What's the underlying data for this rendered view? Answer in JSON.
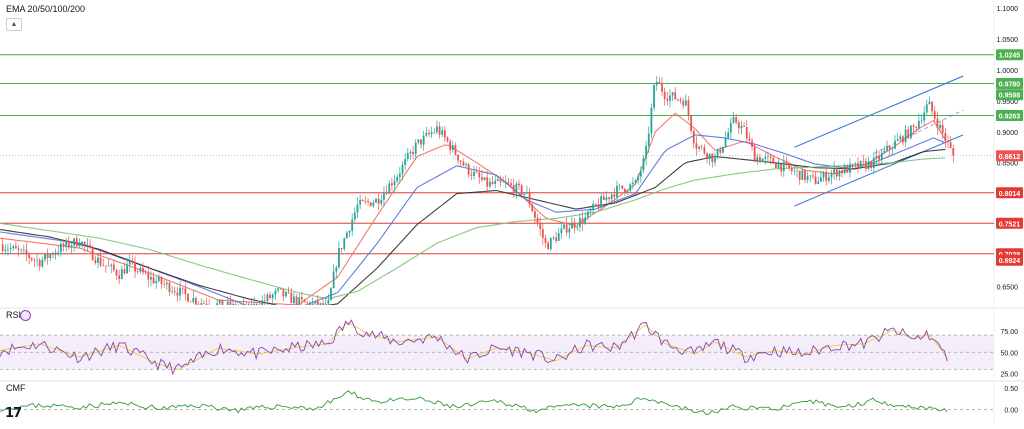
{
  "indicator_label": "EMA 20/50/100/200",
  "rsi_label": "RSI",
  "cmf_label": "CMF",
  "logo_text": "17",
  "colors": {
    "candle_up": "#26a69a",
    "candle_down": "#ef5350",
    "ema20": "#ef6c5d",
    "ema50": "#4f6fe0",
    "ema100": "#2b2b2b",
    "ema200": "#7cc477",
    "resistance_green": "#4caf50",
    "support_red": "#e53935",
    "channel": "#3f7fd9",
    "rsi_line": "#8e44ad",
    "rsi_ma": "#e8d13a",
    "cmf_line": "#2e9b3a"
  },
  "chart_data": [
    {
      "type": "candlestick",
      "title": "EMA 20/50/100/200",
      "ylim": [
        0.62,
        1.1
      ],
      "y_ticks": [
        "1.1000",
        "1.0500",
        "1.0000",
        "0.9500",
        "0.9000",
        "0.8500",
        "0.6500"
      ],
      "current_price": "0.8612",
      "horizontal_levels": [
        {
          "value": 1.0245,
          "label": "1.0245",
          "color": "green"
        },
        {
          "value": 0.978,
          "label": "0.9780",
          "color": "green"
        },
        {
          "value": 0.9263,
          "label": "0.9263",
          "color": "green"
        },
        {
          "value": 0.8014,
          "label": "0.8014",
          "color": "red"
        },
        {
          "value": 0.7521,
          "label": "0.7521",
          "color": "red"
        },
        {
          "value": 0.7028,
          "label": "0.7028",
          "color": "red"
        }
      ],
      "extra_price_labels": [
        {
          "value": 0.9598,
          "label": "0.9598",
          "color": "green"
        },
        {
          "value": 0.6924,
          "label": "0.6924",
          "color": "red"
        }
      ],
      "channel": {
        "upper": [
          [
            0.8,
            0.875
          ],
          [
            0.97,
            0.99
          ]
        ],
        "lower": [
          [
            0.8,
            0.78
          ],
          [
            0.97,
            0.895
          ]
        ],
        "mid": [
          [
            0.88,
            0.865
          ],
          [
            0.97,
            0.935
          ]
        ]
      },
      "keypoints": [
        [
          0.0,
          0.718
        ],
        [
          0.02,
          0.705
        ],
        [
          0.04,
          0.69
        ],
        [
          0.06,
          0.712
        ],
        [
          0.08,
          0.724
        ],
        [
          0.1,
          0.69
        ],
        [
          0.12,
          0.67
        ],
        [
          0.13,
          0.685
        ],
        [
          0.15,
          0.664
        ],
        [
          0.17,
          0.65
        ],
        [
          0.2,
          0.625
        ],
        [
          0.25,
          0.612
        ],
        [
          0.28,
          0.64
        ],
        [
          0.3,
          0.625
        ],
        [
          0.33,
          0.615
        ],
        [
          0.34,
          0.7
        ],
        [
          0.36,
          0.78
        ],
        [
          0.38,
          0.79
        ],
        [
          0.4,
          0.83
        ],
        [
          0.42,
          0.88
        ],
        [
          0.44,
          0.905
        ],
        [
          0.45,
          0.885
        ],
        [
          0.47,
          0.84
        ],
        [
          0.49,
          0.815
        ],
        [
          0.51,
          0.815
        ],
        [
          0.53,
          0.8
        ],
        [
          0.55,
          0.715
        ],
        [
          0.57,
          0.745
        ],
        [
          0.59,
          0.76
        ],
        [
          0.6,
          0.78
        ],
        [
          0.62,
          0.805
        ],
        [
          0.64,
          0.815
        ],
        [
          0.65,
          0.86
        ],
        [
          0.66,
          0.985
        ],
        [
          0.67,
          0.96
        ],
        [
          0.69,
          0.95
        ],
        [
          0.7,
          0.88
        ],
        [
          0.72,
          0.855
        ],
        [
          0.74,
          0.92
        ],
        [
          0.75,
          0.9
        ],
        [
          0.76,
          0.86
        ],
        [
          0.78,
          0.85
        ],
        [
          0.8,
          0.835
        ],
        [
          0.82,
          0.82
        ],
        [
          0.84,
          0.835
        ],
        [
          0.86,
          0.842
        ],
        [
          0.88,
          0.85
        ],
        [
          0.9,
          0.88
        ],
        [
          0.92,
          0.905
        ],
        [
          0.935,
          0.945
        ],
        [
          0.95,
          0.895
        ],
        [
          0.96,
          0.861
        ]
      ],
      "ema_series": [
        {
          "key": "ema20",
          "points": [
            [
              0.0,
              0.728
            ],
            [
              0.08,
              0.712
            ],
            [
              0.15,
              0.672
            ],
            [
              0.22,
              0.628
            ],
            [
              0.3,
              0.62
            ],
            [
              0.34,
              0.665
            ],
            [
              0.38,
              0.765
            ],
            [
              0.42,
              0.86
            ],
            [
              0.45,
              0.88
            ],
            [
              0.48,
              0.85
            ],
            [
              0.51,
              0.818
            ],
            [
              0.55,
              0.76
            ],
            [
              0.58,
              0.748
            ],
            [
              0.61,
              0.78
            ],
            [
              0.64,
              0.815
            ],
            [
              0.66,
              0.9
            ],
            [
              0.68,
              0.93
            ],
            [
              0.7,
              0.905
            ],
            [
              0.72,
              0.87
            ],
            [
              0.75,
              0.885
            ],
            [
              0.78,
              0.86
            ],
            [
              0.81,
              0.838
            ],
            [
              0.84,
              0.832
            ],
            [
              0.87,
              0.845
            ],
            [
              0.9,
              0.875
            ],
            [
              0.925,
              0.905
            ],
            [
              0.94,
              0.918
            ],
            [
              0.955,
              0.88
            ]
          ]
        },
        {
          "key": "ema50",
          "points": [
            [
              0.0,
              0.738
            ],
            [
              0.08,
              0.72
            ],
            [
              0.15,
              0.68
            ],
            [
              0.2,
              0.65
            ],
            [
              0.25,
              0.618
            ],
            [
              0.3,
              0.615
            ],
            [
              0.34,
              0.64
            ],
            [
              0.38,
              0.72
            ],
            [
              0.42,
              0.81
            ],
            [
              0.46,
              0.845
            ],
            [
              0.5,
              0.83
            ],
            [
              0.53,
              0.79
            ],
            [
              0.56,
              0.77
            ],
            [
              0.6,
              0.775
            ],
            [
              0.64,
              0.8
            ],
            [
              0.67,
              0.87
            ],
            [
              0.7,
              0.895
            ],
            [
              0.73,
              0.89
            ],
            [
              0.76,
              0.88
            ],
            [
              0.79,
              0.865
            ],
            [
              0.82,
              0.848
            ],
            [
              0.85,
              0.842
            ],
            [
              0.88,
              0.85
            ],
            [
              0.91,
              0.87
            ],
            [
              0.94,
              0.89
            ],
            [
              0.955,
              0.88
            ]
          ]
        },
        {
          "key": "ema100",
          "points": [
            [
              0.0,
              0.742
            ],
            [
              0.05,
              0.73
            ],
            [
              0.1,
              0.71
            ],
            [
              0.15,
              0.68
            ],
            [
              0.2,
              0.652
            ],
            [
              0.25,
              0.63
            ],
            [
              0.3,
              0.612
            ],
            [
              0.34,
              0.622
            ],
            [
              0.38,
              0.68
            ],
            [
              0.42,
              0.75
            ],
            [
              0.46,
              0.8
            ],
            [
              0.5,
              0.805
            ],
            [
              0.54,
              0.79
            ],
            [
              0.58,
              0.775
            ],
            [
              0.62,
              0.785
            ],
            [
              0.66,
              0.81
            ],
            [
              0.69,
              0.85
            ],
            [
              0.72,
              0.86
            ],
            [
              0.75,
              0.855
            ],
            [
              0.78,
              0.85
            ],
            [
              0.82,
              0.842
            ],
            [
              0.86,
              0.84
            ],
            [
              0.9,
              0.85
            ],
            [
              0.93,
              0.868
            ],
            [
              0.955,
              0.872
            ]
          ]
        },
        {
          "key": "ema200",
          "points": [
            [
              0.0,
              0.752
            ],
            [
              0.05,
              0.74
            ],
            [
              0.1,
              0.728
            ],
            [
              0.15,
              0.71
            ],
            [
              0.2,
              0.685
            ],
            [
              0.25,
              0.662
            ],
            [
              0.3,
              0.64
            ],
            [
              0.33,
              0.63
            ],
            [
              0.36,
              0.642
            ],
            [
              0.4,
              0.68
            ],
            [
              0.44,
              0.72
            ],
            [
              0.48,
              0.745
            ],
            [
              0.52,
              0.755
            ],
            [
              0.56,
              0.76
            ],
            [
              0.6,
              0.77
            ],
            [
              0.64,
              0.79
            ],
            [
              0.67,
              0.808
            ],
            [
              0.7,
              0.822
            ],
            [
              0.74,
              0.832
            ],
            [
              0.78,
              0.84
            ],
            [
              0.82,
              0.843
            ],
            [
              0.86,
              0.846
            ],
            [
              0.9,
              0.85
            ],
            [
              0.93,
              0.856
            ],
            [
              0.955,
              0.858
            ]
          ]
        }
      ]
    },
    {
      "type": "line",
      "title": "RSI",
      "ylim": [
        20,
        90
      ],
      "y_ticks": [
        "75.00",
        "50.00",
        "25.00"
      ],
      "band": [
        30,
        70
      ],
      "keypoints": [
        [
          0.0,
          52
        ],
        [
          0.04,
          60
        ],
        [
          0.08,
          44
        ],
        [
          0.12,
          58
        ],
        [
          0.16,
          36
        ],
        [
          0.18,
          30
        ],
        [
          0.22,
          55
        ],
        [
          0.26,
          48
        ],
        [
          0.3,
          56
        ],
        [
          0.33,
          60
        ],
        [
          0.35,
          85
        ],
        [
          0.37,
          72
        ],
        [
          0.4,
          62
        ],
        [
          0.44,
          68
        ],
        [
          0.47,
          42
        ],
        [
          0.5,
          55
        ],
        [
          0.53,
          50
        ],
        [
          0.56,
          40
        ],
        [
          0.59,
          58
        ],
        [
          0.62,
          55
        ],
        [
          0.65,
          82
        ],
        [
          0.67,
          60
        ],
        [
          0.7,
          48
        ],
        [
          0.72,
          62
        ],
        [
          0.75,
          45
        ],
        [
          0.78,
          52
        ],
        [
          0.81,
          48
        ],
        [
          0.84,
          58
        ],
        [
          0.87,
          60
        ],
        [
          0.9,
          76
        ],
        [
          0.92,
          65
        ],
        [
          0.935,
          72
        ],
        [
          0.95,
          50
        ],
        [
          0.955,
          40
        ]
      ]
    },
    {
      "type": "line",
      "title": "CMF",
      "ylim": [
        -0.2,
        0.55
      ],
      "y_ticks": [
        "0.50",
        "0.00"
      ],
      "keypoints": [
        [
          0.0,
          0.02
        ],
        [
          0.04,
          0.1
        ],
        [
          0.08,
          0.06
        ],
        [
          0.12,
          0.15
        ],
        [
          0.16,
          0.02
        ],
        [
          0.2,
          0.1
        ],
        [
          0.24,
          -0.02
        ],
        [
          0.28,
          0.08
        ],
        [
          0.32,
          0.02
        ],
        [
          0.35,
          0.4
        ],
        [
          0.38,
          0.18
        ],
        [
          0.42,
          0.25
        ],
        [
          0.46,
          0.05
        ],
        [
          0.5,
          0.2
        ],
        [
          0.54,
          -0.02
        ],
        [
          0.58,
          0.1
        ],
        [
          0.62,
          0.05
        ],
        [
          0.65,
          0.28
        ],
        [
          0.68,
          0.08
        ],
        [
          0.71,
          -0.1
        ],
        [
          0.74,
          0.06
        ],
        [
          0.78,
          0.02
        ],
        [
          0.82,
          0.18
        ],
        [
          0.85,
          0.05
        ],
        [
          0.88,
          0.22
        ],
        [
          0.91,
          0.08
        ],
        [
          0.935,
          0.04
        ],
        [
          0.955,
          -0.02
        ]
      ]
    }
  ]
}
